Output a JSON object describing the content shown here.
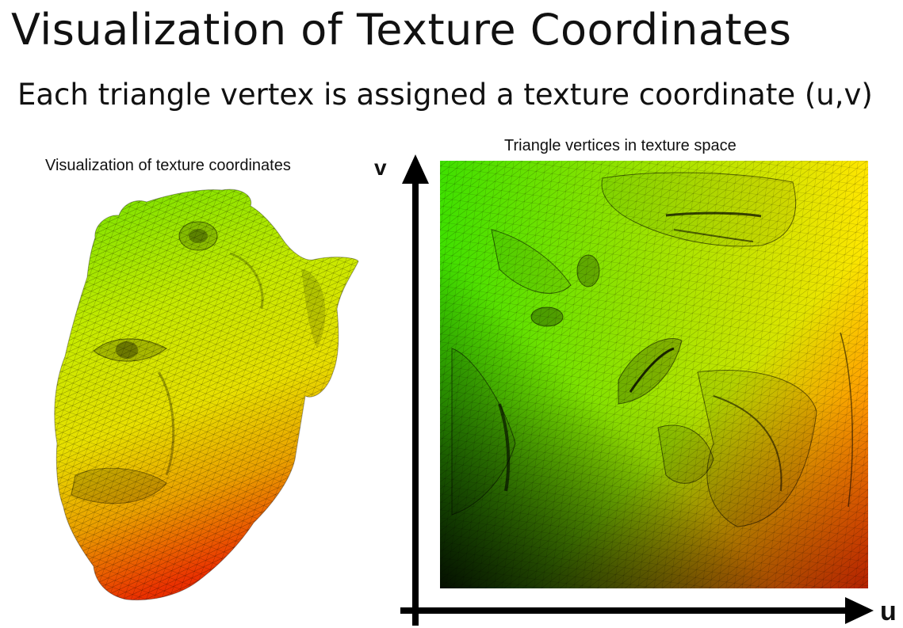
{
  "title": "Visualization of Texture Coordinates",
  "subtitle": "Each triangle vertex is assigned a texture coordinate (u,v)",
  "left_panel": {
    "caption": "Visualization of texture coordinates"
  },
  "right_panel": {
    "caption": "Triangle vertices in texture space",
    "axis_v_label": "v",
    "axis_u_label": "u"
  },
  "colors": {
    "green": "#3fe000",
    "yellow": "#e9ea00",
    "orange": "#e8a000",
    "red": "#e81200",
    "dark": "#101000",
    "mesh_line": "#000000"
  }
}
